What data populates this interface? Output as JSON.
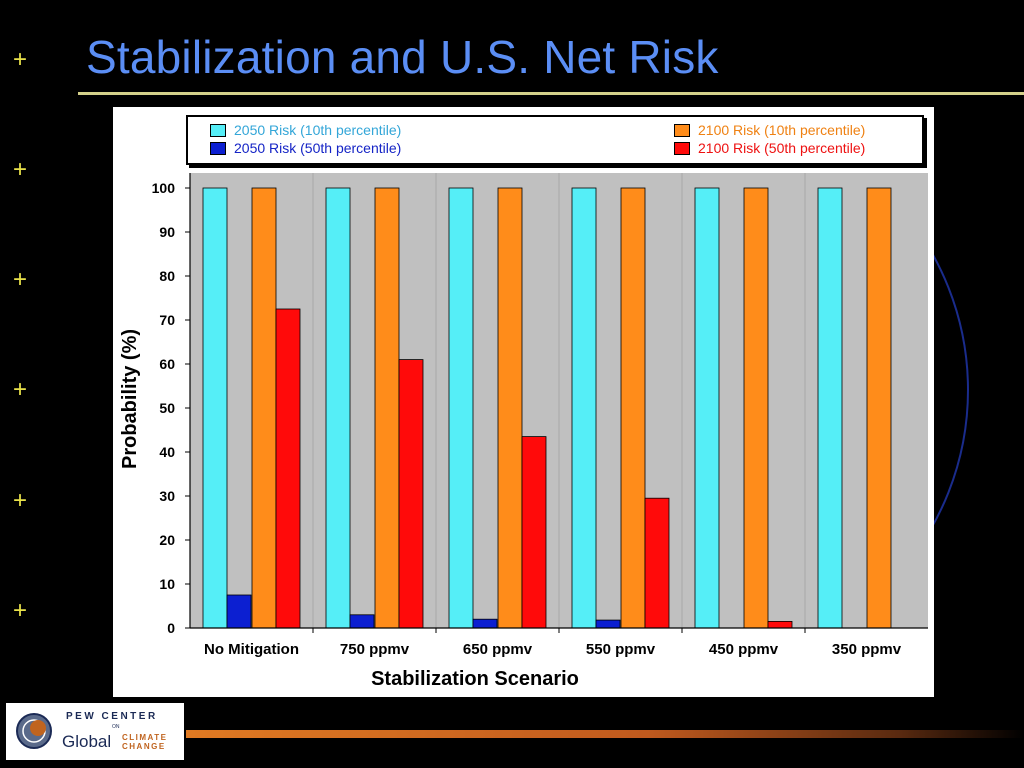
{
  "slide": {
    "title": "Stabilization and U.S. Net Risk",
    "bullet_glyph": "+",
    "bullet_count": 6
  },
  "logo": {
    "line1": "PEW CENTER",
    "on": "ON",
    "line2a": "Global",
    "line2b": "CLIMATE",
    "line2c": "CHANGE"
  },
  "colors": {
    "background": "#000000",
    "title": "#5b8ef5",
    "title_rule": "#d4d08a",
    "bullet": "#e8e14a",
    "plot_bg": "#c0c0c0",
    "deco_circle": "#1a2c8c",
    "footer_bar": "#e07a22"
  },
  "chart_data": {
    "type": "bar",
    "title": "",
    "xlabel": "Stabilization Scenario",
    "ylabel": "Probability (%)",
    "ylim": [
      0,
      100
    ],
    "yticks": [
      0,
      10,
      20,
      30,
      40,
      50,
      60,
      70,
      80,
      90,
      100
    ],
    "grid": false,
    "legend_position": "top",
    "categories": [
      "No Mitigation",
      "750 ppmv",
      "650 ppmv",
      "550 ppmv",
      "450 ppmv",
      "350 ppmv"
    ],
    "series": [
      {
        "name": "2050 Risk (10th percentile)",
        "color": "#55eef7",
        "legend_text_color": "#33a6d8",
        "values": [
          100,
          100,
          100,
          100,
          100,
          100
        ]
      },
      {
        "name": "2050 Risk (50th percentile)",
        "color": "#0c1fd1",
        "legend_text_color": "#1524c6",
        "values": [
          7.5,
          3,
          2,
          1.8,
          0,
          0
        ]
      },
      {
        "name": "2100 Risk (10th percentile)",
        "color": "#ff8c1a",
        "legend_text_color": "#ef8112",
        "values": [
          100,
          100,
          100,
          100,
          100,
          100
        ]
      },
      {
        "name": "2100 Risk (50th percentile)",
        "color": "#ff0a0a",
        "legend_text_color": "#ee1111",
        "values": [
          72.5,
          61,
          43.5,
          29.5,
          1.5,
          0
        ]
      }
    ]
  }
}
